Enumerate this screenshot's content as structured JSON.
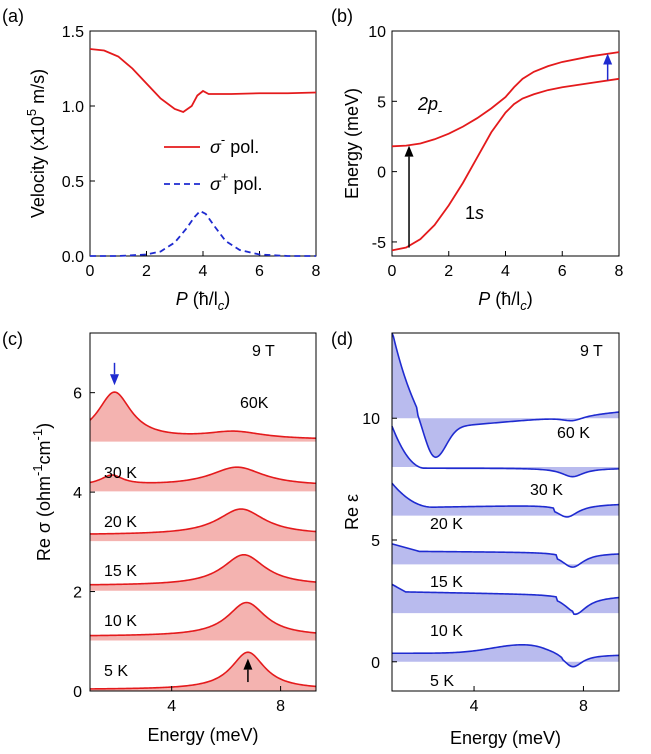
{
  "chart_data": [
    {
      "panel": "(a)",
      "type": "line",
      "xlabel_italic": "P",
      "xlabel_unit": "(ħ/l",
      "xlabel_sub": "c",
      "xlabel_close": ")",
      "ylabel": "Velocity (x10",
      "ylabel_sup": "5",
      "ylabel_unit": " m/s)",
      "xlim": [
        0,
        8
      ],
      "ylim": [
        0,
        1.5
      ],
      "xticks": [
        "0",
        "2",
        "4",
        "6",
        "8"
      ],
      "yticks": [
        "0.0",
        "0.5",
        "1.0",
        "1.5"
      ],
      "legend_placement": "center-right",
      "series": [
        {
          "name": "σ- pol.",
          "name_symbol": "σ",
          "name_sup": "-",
          "name_rest": " pol.",
          "color": "#e41a1c",
          "style": "solid",
          "x": [
            0,
            0.5,
            1.0,
            1.5,
            2.0,
            2.5,
            3.0,
            3.3,
            3.6,
            3.8,
            4.0,
            4.2,
            4.5,
            5,
            6,
            7,
            8
          ],
          "y": [
            1.38,
            1.37,
            1.33,
            1.25,
            1.15,
            1.05,
            0.98,
            0.96,
            1.0,
            1.07,
            1.1,
            1.08,
            1.08,
            1.08,
            1.085,
            1.085,
            1.09
          ]
        },
        {
          "name": "σ+ pol.",
          "name_symbol": "σ",
          "name_sup": "+",
          "name_rest": " pol.",
          "color": "#1f2bd0",
          "style": "dashed",
          "x": [
            0,
            1,
            2,
            2.5,
            3.0,
            3.4,
            3.7,
            3.9,
            4.1,
            4.4,
            4.8,
            5.3,
            6,
            7,
            8
          ],
          "y": [
            0,
            0,
            0.01,
            0.03,
            0.09,
            0.18,
            0.26,
            0.3,
            0.28,
            0.2,
            0.1,
            0.04,
            0.01,
            0,
            0
          ]
        }
      ]
    },
    {
      "panel": "(b)",
      "type": "line",
      "xlabel_italic": "P",
      "xlabel_unit": "(ħ/l",
      "xlabel_sub": "c",
      "xlabel_close": ")",
      "ylabel": "Energy (meV)",
      "xlim": [
        0,
        8
      ],
      "ylim": [
        -6,
        10
      ],
      "xticks": [
        "0",
        "2",
        "4",
        "6",
        "8"
      ],
      "yticks": [
        "-5",
        "0",
        "5",
        "10"
      ],
      "annotations": {
        "upper": "2p",
        "upper_sub": "-",
        "lower": "1s"
      },
      "series": [
        {
          "name": "2p-",
          "color": "#e41a1c",
          "x": [
            0,
            0.5,
            1,
            1.5,
            2,
            2.5,
            3,
            3.5,
            4,
            4.3,
            4.6,
            5,
            5.5,
            6,
            7,
            8
          ],
          "y": [
            1.8,
            1.85,
            2.0,
            2.3,
            2.7,
            3.2,
            3.8,
            4.5,
            5.3,
            6.0,
            6.6,
            7.1,
            7.5,
            7.8,
            8.2,
            8.5
          ]
        },
        {
          "name": "1s",
          "color": "#e41a1c",
          "x": [
            0,
            0.5,
            1,
            1.5,
            2,
            2.5,
            3,
            3.5,
            4,
            4.3,
            4.6,
            5,
            5.5,
            6,
            7,
            8
          ],
          "y": [
            -5.6,
            -5.4,
            -4.8,
            -3.8,
            -2.4,
            -0.8,
            1.0,
            2.8,
            4.2,
            4.8,
            5.2,
            5.5,
            5.8,
            6.0,
            6.3,
            6.6
          ]
        }
      ],
      "arrows": [
        {
          "x": 0.6,
          "y_from": -5.4,
          "y_to": 1.85,
          "color": "#000000"
        },
        {
          "x": 7.6,
          "y_from": 6.5,
          "y_to": 8.4,
          "color": "#1f2bd0"
        }
      ]
    },
    {
      "panel": "(c)",
      "type": "area",
      "xlabel": "Energy (meV)",
      "ylabel": "Re σ (ohm",
      "ylabel_sup1": "-1",
      "ylabel_mid": "cm",
      "ylabel_sup2": "-1",
      "ylabel_close": ")",
      "xlim": [
        1,
        9.3
      ],
      "ylim": [
        0,
        7.2
      ],
      "xticks": [
        "4",
        "8"
      ],
      "yticks": [
        "0",
        "2",
        "4",
        "6"
      ],
      "field_label": "9 T",
      "line_color": "#e41a1c",
      "fill_color": "#f4b3b0",
      "series": [
        {
          "name": "5 K",
          "offset": 0,
          "amp": 0.75,
          "center": 6.8,
          "width": 0.75,
          "base": 0.03,
          "peak2": 0,
          "c2": 0,
          "w2": 1
        },
        {
          "name": "10 K",
          "offset": 1,
          "amp": 0.68,
          "center": 6.75,
          "width": 0.85,
          "base": 0.1,
          "peak2": 0,
          "c2": 0,
          "w2": 1
        },
        {
          "name": "15 K",
          "offset": 2,
          "amp": 0.62,
          "center": 6.65,
          "width": 0.95,
          "base": 0.12,
          "peak2": 0,
          "c2": 0,
          "w2": 1
        },
        {
          "name": "20 K",
          "offset": 3,
          "amp": 0.52,
          "center": 6.55,
          "width": 1.05,
          "base": 0.14,
          "peak2": 0,
          "c2": 0,
          "w2": 1
        },
        {
          "name": "30 K",
          "offset": 4,
          "amp": 0.38,
          "center": 6.4,
          "width": 1.2,
          "base": 0.12,
          "peak2": 0.2,
          "c2": 1.8,
          "w2": 0.5
        },
        {
          "name": "60K",
          "offset": 5,
          "amp": 0.15,
          "center": 6.3,
          "width": 1.3,
          "base": 0.05,
          "peak2": 0.95,
          "c2": 1.9,
          "w2": 0.75
        }
      ],
      "arrows": [
        {
          "x": 1.9,
          "y_from": 6.6,
          "y_to": 6.15,
          "color": "#1f2bd0"
        },
        {
          "x": 6.8,
          "y_from": 0.18,
          "y_to": 0.65,
          "color": "#000000"
        }
      ]
    },
    {
      "panel": "(d)",
      "type": "area",
      "xlabel": "Energy (meV)",
      "ylabel": "Re ε",
      "xlim": [
        1,
        9.3
      ],
      "ylim": [
        -1.2,
        13.5
      ],
      "xticks": [
        "4",
        "8"
      ],
      "yticks": [
        "0",
        "5",
        "10"
      ],
      "field_label": "9 T",
      "line_color": "#1f2bd0",
      "fill_color": "#b9bbee",
      "series": [
        {
          "name": "5 K",
          "offset": 0
        },
        {
          "name": "10 K",
          "offset": 2
        },
        {
          "name": "15 K",
          "offset": 4
        },
        {
          "name": "20 K",
          "offset": 6
        },
        {
          "name": "30 K",
          "offset": 8
        },
        {
          "name": "60 K",
          "offset": 10
        }
      ]
    }
  ]
}
